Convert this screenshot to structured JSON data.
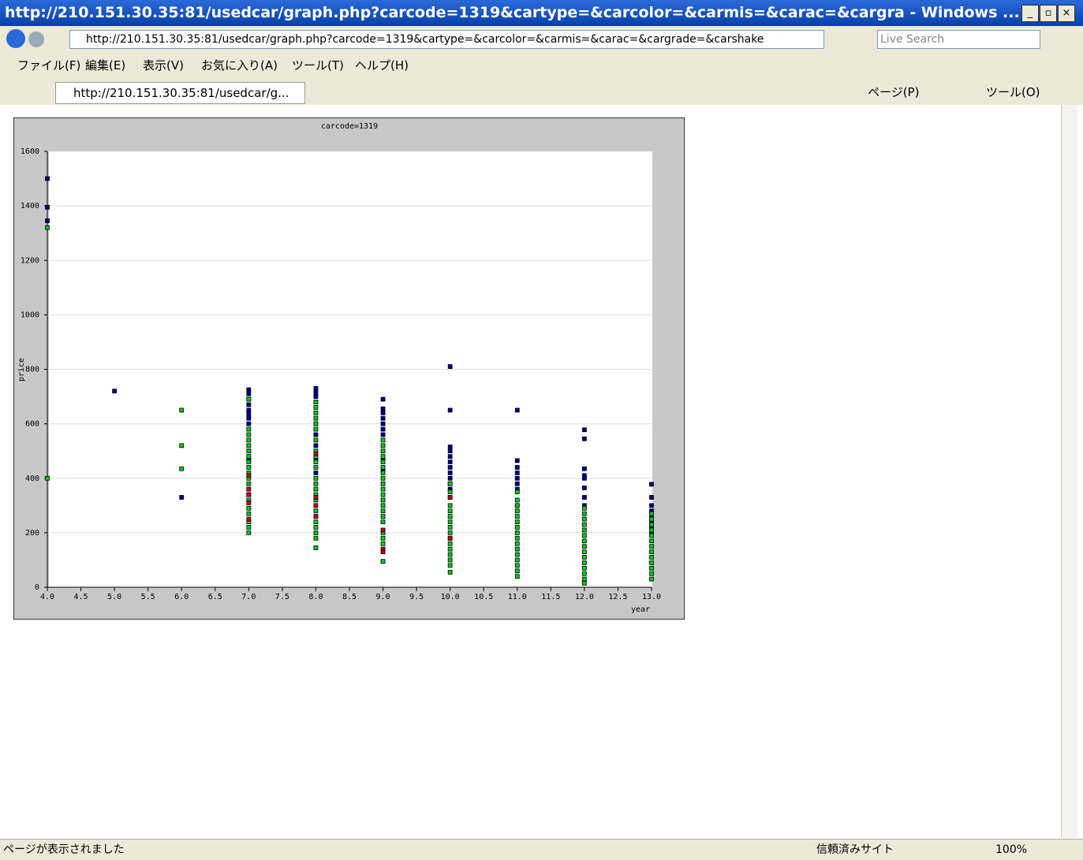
{
  "window": {
    "title": "http://210.151.30.35:81/usedcar/graph.php?carcode=1319&cartype=&carcolor=&carmis=&carac=&cargra - Windows ...",
    "address": "http://210.151.30.35:81/usedcar/graph.php?carcode=1319&cartype=&carcolor=&carmis=&carac=&cargrade=&carshake",
    "search": "Live Search",
    "menu": [
      "ファイル(F)",
      "編集(E)",
      "表示(V)",
      "お気に入り(A)",
      "ツール(T)",
      "ヘルプ(H)"
    ],
    "tab": "http://210.151.30.35:81/usedcar/g...",
    "toolbar": [
      "ページ(P)",
      "ツール(O)"
    ],
    "status": "ページが表示されました",
    "zone": "信頼済みサイト",
    "zoom": "100%"
  },
  "chart_data": {
    "type": "scatter",
    "title": "carcode=1319",
    "x_label": "year",
    "y_label": "price",
    "xlim": [
      4,
      13
    ],
    "ylim": [
      0,
      1600
    ],
    "xticks": [
      {
        "value": 4,
        "label": "4.0"
      },
      4.5,
      {
        "value": 5,
        "label": "5.0"
      },
      5.5,
      {
        "value": 6,
        "label": "6.0"
      },
      6.5,
      {
        "value": 7,
        "label": "7.0"
      },
      7.5,
      {
        "value": 8,
        "label": "8.0"
      },
      8.5,
      {
        "value": 9,
        "label": "9.0"
      },
      9.5,
      {
        "value": 10,
        "label": "10.0"
      },
      10.5,
      {
        "value": 11,
        "label": "11.0"
      },
      11.5,
      {
        "value": 12,
        "label": "12.0"
      },
      12.5,
      {
        "value": 13,
        "label": "13.0"
      }
    ],
    "yticks": [
      0,
      200,
      400,
      600,
      800,
      1000,
      1200,
      1400,
      1600
    ],
    "grid": true,
    "series": [
      {
        "color": "#000080",
        "x": [
          4,
          4,
          4,
          5,
          6,
          7,
          7,
          7,
          7,
          7,
          7,
          7,
          7,
          7,
          7,
          8,
          8,
          8,
          8,
          8,
          8,
          8,
          8,
          8,
          9,
          9,
          9,
          9,
          9,
          9,
          9,
          9,
          9,
          10,
          10,
          10,
          10,
          10,
          10,
          10,
          10,
          10,
          10,
          10,
          11,
          11,
          11,
          11,
          11,
          11,
          11,
          11,
          12,
          12,
          12,
          12,
          12,
          12,
          12,
          12,
          13,
          13,
          13,
          13,
          13,
          13,
          13,
          13
        ],
        "values": [
          1500,
          1395,
          1345,
          720,
          330,
          725,
          710,
          690,
          670,
          650,
          635,
          620,
          600,
          500,
          470,
          730,
          715,
          700,
          680,
          600,
          560,
          520,
          470,
          420,
          690,
          655,
          640,
          620,
          600,
          580,
          560,
          470,
          430,
          810,
          650,
          515,
          500,
          480,
          460,
          440,
          420,
          400,
          380,
          360,
          650,
          465,
          440,
          420,
          400,
          380,
          360,
          300,
          578,
          545,
          435,
          410,
          400,
          365,
          330,
          300,
          378,
          330,
          300,
          280,
          260,
          240,
          220,
          200
        ]
      },
      {
        "color": "#00cc00",
        "x": [
          4,
          4,
          6,
          6,
          6,
          7,
          7,
          7,
          7,
          7,
          7,
          7,
          7,
          7,
          7,
          7,
          7,
          7,
          7,
          7,
          7,
          7,
          7,
          7,
          8,
          8,
          8,
          8,
          8,
          8,
          8,
          8,
          8,
          8,
          8,
          8,
          8,
          8,
          8,
          8,
          8,
          8,
          8,
          8,
          8,
          8,
          8,
          9,
          9,
          9,
          9,
          9,
          9,
          9,
          9,
          9,
          9,
          9,
          9,
          9,
          9,
          9,
          9,
          9,
          9,
          9,
          9,
          10,
          10,
          10,
          10,
          10,
          10,
          10,
          10,
          10,
          10,
          10,
          10,
          10,
          10,
          10,
          10,
          11,
          11,
          11,
          11,
          11,
          11,
          11,
          11,
          11,
          11,
          11,
          11,
          11,
          11,
          11,
          11,
          12,
          12,
          12,
          12,
          12,
          12,
          12,
          12,
          12,
          12,
          12,
          12,
          12,
          12,
          12,
          13,
          13,
          13,
          13,
          13,
          13,
          13,
          13,
          13,
          13,
          13,
          13,
          13
        ],
        "values": [
          1320,
          400,
          650,
          520,
          435,
          690,
          580,
          560,
          540,
          520,
          500,
          480,
          460,
          440,
          420,
          400,
          380,
          340,
          320,
          290,
          270,
          240,
          220,
          200,
          680,
          660,
          640,
          620,
          600,
          580,
          540,
          500,
          480,
          460,
          440,
          400,
          380,
          360,
          340,
          320,
          280,
          260,
          240,
          220,
          200,
          180,
          145,
          540,
          520,
          500,
          480,
          460,
          440,
          420,
          400,
          380,
          360,
          340,
          320,
          300,
          280,
          260,
          240,
          200,
          180,
          160,
          95,
          380,
          350,
          330,
          300,
          280,
          260,
          240,
          220,
          200,
          180,
          160,
          140,
          120,
          100,
          80,
          55,
          350,
          320,
          300,
          280,
          260,
          240,
          220,
          200,
          180,
          160,
          140,
          120,
          100,
          80,
          60,
          40,
          290,
          270,
          250,
          230,
          210,
          190,
          170,
          150,
          130,
          110,
          90,
          70,
          50,
          30,
          15,
          270,
          250,
          230,
          210,
          190,
          170,
          150,
          130,
          110,
          90,
          70,
          50,
          30
        ]
      },
      {
        "color": "#cc0000",
        "x": [
          7,
          7,
          7,
          7,
          7,
          8,
          8,
          8,
          8,
          9,
          9,
          9,
          10,
          10
        ],
        "values": [
          410,
          360,
          340,
          310,
          250,
          490,
          330,
          300,
          260,
          210,
          140,
          130,
          330,
          180
        ]
      }
    ]
  }
}
